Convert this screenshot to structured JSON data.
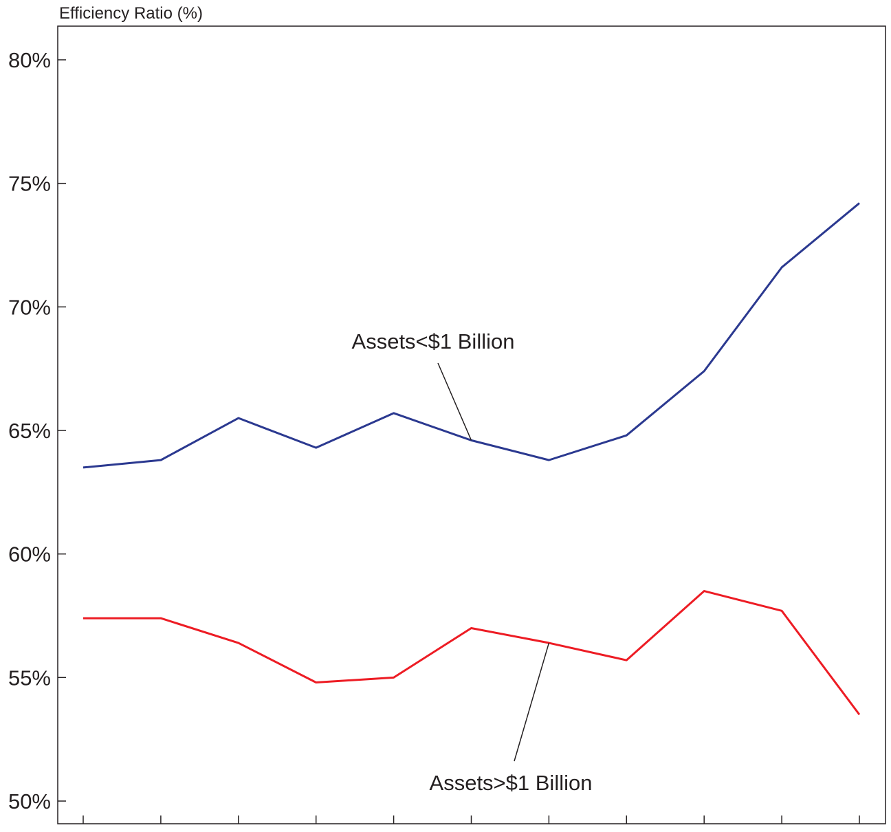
{
  "chart_data": {
    "type": "line",
    "title": "",
    "ylabel": "Efficiency Ratio (%)",
    "xlabel": "",
    "ylim": [
      50,
      81.3
    ],
    "yticks": [
      50,
      55,
      60,
      65,
      70,
      75,
      80
    ],
    "ytick_labels": [
      "50%",
      "55%",
      "60%",
      "65%",
      "70%",
      "75%",
      "80%"
    ],
    "x": [
      1,
      2,
      3,
      4,
      5,
      6,
      7,
      8,
      9,
      10,
      11
    ],
    "xlim": [
      0.65,
      11.65
    ],
    "grid": false,
    "series": [
      {
        "key": "small",
        "color": "#2b3990",
        "values": [
          63.5,
          63.8,
          65.5,
          64.3,
          65.7,
          64.6,
          63.8,
          64.8,
          67.4,
          71.6,
          74.2
        ]
      },
      {
        "key": "large",
        "color": "#ed1c24",
        "values": [
          57.4,
          57.4,
          56.4,
          54.8,
          55.0,
          57.0,
          56.4,
          55.7,
          58.5,
          57.7,
          53.5
        ]
      }
    ],
    "annotations": [
      {
        "text": "Assets<$1 Billion",
        "series": "small",
        "point_index": 5
      },
      {
        "text": "Assets>$1 Billion",
        "series": "large",
        "point_index": 6
      }
    ]
  }
}
